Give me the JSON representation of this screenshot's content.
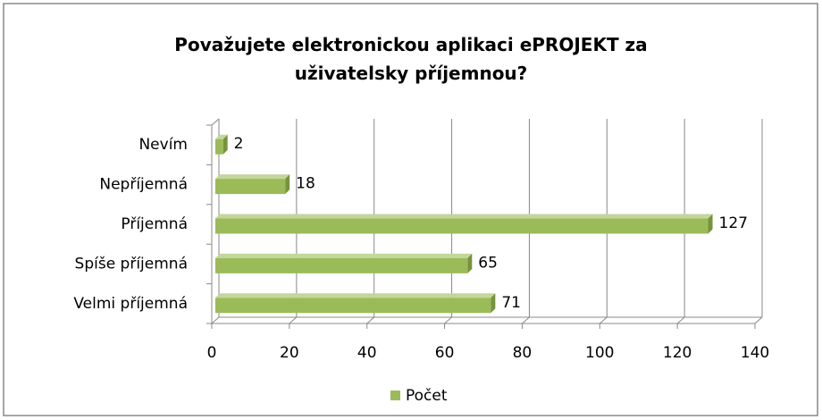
{
  "chart_data": {
    "type": "bar",
    "orientation": "horizontal",
    "title": "Považujete elektronickou aplikaci ePROJEKT za uživatelsky příjemnou?",
    "categories": [
      "Nevím",
      "Nepříjemná",
      "Příjemná",
      "Spíše příjemná",
      "Velmi příjemná"
    ],
    "series": [
      {
        "name": "Počet",
        "color": "#9bbb59",
        "values": [
          2,
          18,
          127,
          65,
          71
        ]
      }
    ],
    "xlim": [
      0,
      140
    ],
    "xticks": [
      0,
      20,
      40,
      60,
      80,
      100,
      120,
      140
    ],
    "grid": true,
    "legend": "bottom"
  }
}
